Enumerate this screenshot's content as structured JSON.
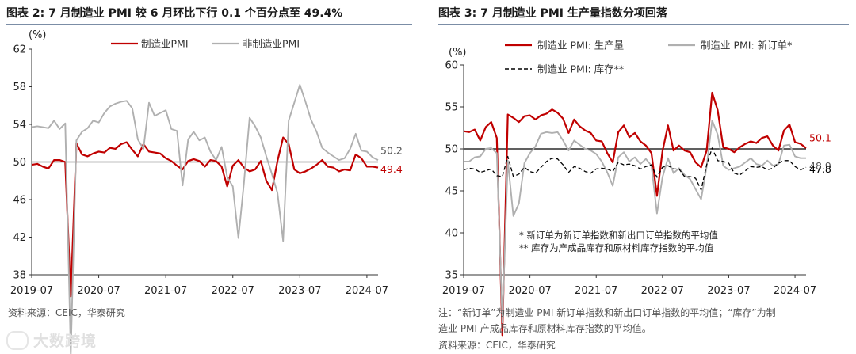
{
  "left": {
    "title": "图表 2:  7 月制造业 PMI 较 6 月环比下行 0.1 个百分点至 49.4%",
    "source": "资料来源：CEIC，华泰研究"
  },
  "right": {
    "title": "图表 3:  7 月制造业 PMI 生产量指数分项回落",
    "note_line1": "注：“新订单”为制造业 PMI 新订单指数和新出口订单指数的平均值；“库存”为制",
    "note_line2": "造业 PMI 产成品库存和原材料库存指数的平均值。",
    "source": "资料来源：CEIC，华泰研究"
  },
  "watermark": "大数跨境",
  "colors": {
    "red": "#c00000",
    "gray": "#b0b0b0",
    "black": "#000000",
    "rule": "#7b8da6"
  },
  "chart_data": [
    {
      "type": "line",
      "unit_label": "(%)",
      "ylim": [
        38,
        62
      ],
      "yticks": [
        38,
        42,
        46,
        50,
        54,
        58,
        62
      ],
      "x_start": "2019-07",
      "x_step": "month",
      "xticks": [
        "2019-07",
        "2020-07",
        "2021-07",
        "2022-07",
        "2023-07",
        "2024-07"
      ],
      "reference_line": 50,
      "series": [
        {
          "name": "制造业PMI",
          "color": "#c00000",
          "end_label": "49.4",
          "values": [
            49.7,
            49.8,
            49.5,
            49.3,
            50.2,
            50.2,
            50.0,
            35.7,
            52.0,
            50.8,
            50.6,
            50.9,
            51.1,
            51.0,
            51.5,
            51.4,
            51.9,
            52.1,
            51.3,
            50.6,
            51.9,
            51.1,
            51.0,
            50.9,
            50.4,
            50.1,
            49.6,
            49.2,
            50.1,
            50.3,
            50.1,
            49.5,
            50.2,
            50.1,
            49.5,
            47.4,
            49.6,
            50.2,
            49.4,
            49.0,
            49.2,
            50.1,
            48.0,
            47.0,
            50.1,
            52.6,
            51.9,
            49.2,
            48.8,
            49.0,
            49.3,
            49.7,
            50.2,
            49.5,
            49.4,
            49.0,
            49.2,
            49.1,
            50.8,
            50.4,
            49.5,
            49.5,
            49.4
          ]
        },
        {
          "name": "非制造业PMI",
          "color": "#b0b0b0",
          "end_label": "50.2",
          "values": [
            53.7,
            53.8,
            53.7,
            53.6,
            54.4,
            53.5,
            54.1,
            29.6,
            52.3,
            53.2,
            53.6,
            54.4,
            54.2,
            55.2,
            55.9,
            56.2,
            56.4,
            56.5,
            55.7,
            52.4,
            51.4,
            56.3,
            54.9,
            55.2,
            55.5,
            53.5,
            53.3,
            47.5,
            52.4,
            53.2,
            52.3,
            52.6,
            51.1,
            50.2,
            51.6,
            48.4,
            47.4,
            41.9,
            47.8,
            54.7,
            53.8,
            52.6,
            50.6,
            48.7,
            46.7,
            41.6,
            54.4,
            56.3,
            58.2,
            56.4,
            54.5,
            53.2,
            51.5,
            51.0,
            50.6,
            50.2,
            50.4,
            51.4,
            53.0,
            51.2,
            51.1,
            50.5,
            50.2
          ]
        }
      ]
    },
    {
      "type": "line",
      "unit_label": "(%)",
      "ylim": [
        35,
        60
      ],
      "yticks": [
        35,
        40,
        45,
        50,
        55,
        60
      ],
      "x_start": "2019-07",
      "x_step": "month",
      "xticks": [
        "2019-07",
        "2020-07",
        "2021-07",
        "2022-07",
        "2023-07",
        "2024-07"
      ],
      "reference_line": 50,
      "series": [
        {
          "name": "制造业 PMI: 生产量",
          "color": "#c00000",
          "dash": "solid",
          "end_label": "50.1",
          "values": [
            52.1,
            52.0,
            52.3,
            51.0,
            52.6,
            53.2,
            51.3,
            27.8,
            54.1,
            53.7,
            53.2,
            53.9,
            54.0,
            53.5,
            54.0,
            54.2,
            54.7,
            54.3,
            53.6,
            51.9,
            53.5,
            52.7,
            52.2,
            51.9,
            51.0,
            50.9,
            49.5,
            48.4,
            52.0,
            52.8,
            51.4,
            51.9,
            50.9,
            50.4,
            49.5,
            44.4,
            49.7,
            52.8,
            49.8,
            50.4,
            49.8,
            49.6,
            48.4,
            47.8,
            49.8,
            56.7,
            54.6,
            50.2,
            50.0,
            49.6,
            50.2,
            50.6,
            50.9,
            50.7,
            51.3,
            51.5,
            50.4,
            49.8,
            52.2,
            52.9,
            50.8,
            50.6,
            50.1
          ]
        },
        {
          "name": "制造业 PMI: 新订单*",
          "color": "#b0b0b0",
          "dash": "solid",
          "end_label": "48.9",
          "values": [
            48.5,
            48.5,
            49.0,
            49.1,
            50.0,
            50.1,
            49.5,
            29.3,
            48.6,
            42.0,
            43.5,
            48.3,
            49.5,
            50.3,
            51.8,
            52.0,
            51.9,
            52.0,
            51.0,
            49.8,
            51.0,
            50.5,
            50.0,
            49.8,
            49.4,
            48.5,
            47.2,
            45.6,
            49.0,
            49.6,
            48.5,
            49.0,
            48.2,
            48.8,
            48.0,
            42.3,
            46.6,
            48.9,
            47.1,
            47.7,
            46.9,
            46.4,
            45.2,
            44.0,
            47.9,
            53.4,
            51.7,
            48.0,
            47.5,
            47.7,
            47.9,
            48.4,
            48.9,
            48.2,
            48.0,
            48.6,
            48.0,
            48.2,
            50.4,
            50.5,
            49.1,
            48.9,
            48.9
          ]
        },
        {
          "name": "制造业 PMI: 库存**",
          "color": "#000000",
          "dash": "dashed",
          "end_label": "47.8",
          "values": [
            47.5,
            47.7,
            47.6,
            47.2,
            47.4,
            47.6,
            46.8,
            46.7,
            49.1,
            46.7,
            47.0,
            47.8,
            47.3,
            47.1,
            47.8,
            48.5,
            48.9,
            48.8,
            48.1,
            47.2,
            47.9,
            47.7,
            47.3,
            47.1,
            47.6,
            47.7,
            47.6,
            47.3,
            48.4,
            48.1,
            48.2,
            48.0,
            47.6,
            47.9,
            48.1,
            46.6,
            47.8,
            48.0,
            47.6,
            47.6,
            46.7,
            46.7,
            46.5,
            45.1,
            48.1,
            50.1,
            48.6,
            48.5,
            48.3,
            47.1,
            46.9,
            47.4,
            47.9,
            47.8,
            47.9,
            47.5,
            47.7,
            48.3,
            48.6,
            48.6,
            47.9,
            47.5,
            47.8
          ]
        }
      ],
      "footnotes": [
        "*  新订单为新订单指数和新出口订单指数的平均值",
        "**  库存为产成品库存和原材料库存指数的平均值"
      ]
    }
  ]
}
